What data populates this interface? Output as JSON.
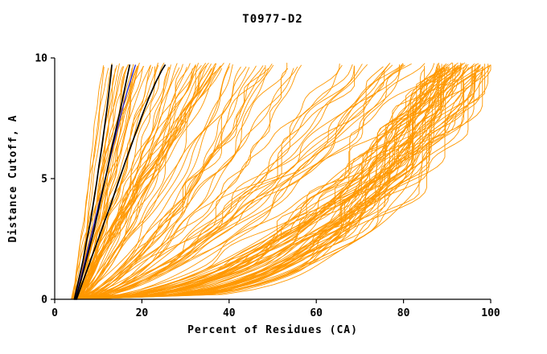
{
  "page": {
    "background": "#ffffff"
  },
  "chart_data": {
    "type": "line",
    "title": "T0977-D2",
    "xlabel": "Percent of Residues (CA)",
    "ylabel": "Distance Cutoff, A",
    "xlim": [
      0,
      100
    ],
    "ylim": [
      0,
      10
    ],
    "xticks": [
      0,
      20,
      40,
      60,
      80,
      100
    ],
    "yticks": [
      0,
      5,
      10
    ],
    "grid": false,
    "legend": "none",
    "axis_color": "#000000",
    "ensemble": {
      "name": "prediction-model-curves",
      "color": "#FF9800",
      "stroke_width": 0.9,
      "count": 160,
      "seed": 977,
      "x_start_range": [
        3.8,
        6.5
      ],
      "top_y_range": [
        9.55,
        9.8
      ],
      "classes": [
        {
          "name": "steep-left",
          "weight": 0.32,
          "x_end_range": [
            11,
            40
          ],
          "exponent_range": [
            0.7,
            1.15
          ]
        },
        {
          "name": "middle",
          "weight": 0.26,
          "x_end_range": [
            40,
            85
          ],
          "exponent_range": [
            0.48,
            0.85
          ]
        },
        {
          "name": "right-bulge",
          "weight": 0.42,
          "x_end_range": [
            86,
            100
          ],
          "exponent_range": [
            0.26,
            0.52
          ]
        }
      ]
    },
    "series": [
      {
        "name": "highlighted-model-blue",
        "color": "#2020CC",
        "stroke_width": 1.3,
        "points": [
          [
            4.7,
            0
          ],
          [
            6.0,
            0.9
          ],
          [
            7.4,
            1.9
          ],
          [
            8.6,
            2.8
          ],
          [
            9.8,
            3.7
          ],
          [
            11.2,
            4.7
          ],
          [
            12.4,
            5.6
          ],
          [
            13.3,
            6.3
          ],
          [
            14.3,
            7.0
          ],
          [
            15.4,
            7.8
          ],
          [
            16.6,
            8.6
          ],
          [
            17.8,
            9.3
          ],
          [
            18.5,
            9.7
          ]
        ]
      },
      {
        "name": "highlighted-model-black-1",
        "color": "#000000",
        "stroke_width": 1.7,
        "points": [
          [
            4.5,
            0
          ],
          [
            5.5,
            0.8
          ],
          [
            6.5,
            1.6
          ],
          [
            7.3,
            2.4
          ],
          [
            8.2,
            3.2
          ],
          [
            8.8,
            3.9
          ],
          [
            9.6,
            4.8
          ],
          [
            10.2,
            5.6
          ],
          [
            10.8,
            6.3
          ],
          [
            11.4,
            7.1
          ],
          [
            12.0,
            7.9
          ],
          [
            12.5,
            8.7
          ],
          [
            12.9,
            9.3
          ],
          [
            13.1,
            9.7
          ]
        ]
      },
      {
        "name": "highlighted-model-black-2",
        "color": "#000000",
        "stroke_width": 1.7,
        "points": [
          [
            4.8,
            0
          ],
          [
            6.2,
            0.9
          ],
          [
            7.5,
            1.8
          ],
          [
            8.8,
            2.7
          ],
          [
            9.9,
            3.6
          ],
          [
            11.0,
            4.5
          ],
          [
            12.0,
            5.3
          ],
          [
            13.0,
            6.2
          ],
          [
            14.0,
            7.0
          ],
          [
            15.0,
            7.8
          ],
          [
            15.9,
            8.6
          ],
          [
            16.6,
            9.2
          ],
          [
            17.2,
            9.7
          ]
        ]
      },
      {
        "name": "highlighted-model-black-3",
        "color": "#000000",
        "stroke_width": 1.7,
        "points": [
          [
            5.0,
            0
          ],
          [
            7.0,
            1.0
          ],
          [
            9.0,
            2.0
          ],
          [
            11.0,
            3.0
          ],
          [
            12.8,
            3.9
          ],
          [
            14.5,
            4.8
          ],
          [
            16.2,
            5.7
          ],
          [
            18.0,
            6.6
          ],
          [
            19.8,
            7.5
          ],
          [
            21.5,
            8.3
          ],
          [
            23.2,
            9.0
          ],
          [
            24.6,
            9.5
          ],
          [
            25.3,
            9.7
          ]
        ]
      }
    ]
  }
}
